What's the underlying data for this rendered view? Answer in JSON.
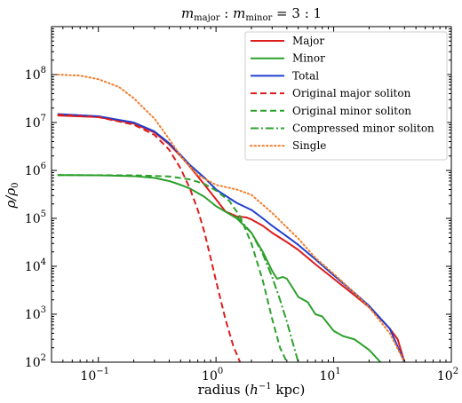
{
  "chart_data": {
    "type": "line",
    "title": "m_major : m_minor = 3 : 1",
    "title_parts": {
      "m1": "m",
      "s1": "major",
      "colon1": " : ",
      "m2": "m",
      "s2": "minor",
      "tail": " = 3 : 1"
    },
    "xlabel": "radius (h⁻¹ kpc)",
    "xlabel_parts": {
      "pre": "radius (",
      "h": "h",
      "sup": "−1",
      "post": " kpc)"
    },
    "ylabel": "ρ/ρ₀",
    "ylabel_parts": {
      "rho": "ρ/ρ",
      "sub": "0"
    },
    "xscale": "log",
    "yscale": "log",
    "xlim": [
      0.04,
      100
    ],
    "ylim": [
      100,
      1000000000
    ],
    "xticks": [
      {
        "value": 0.1,
        "base": "10",
        "exp": "−1"
      },
      {
        "value": 1,
        "base": "10",
        "exp": "0"
      },
      {
        "value": 10,
        "base": "10",
        "exp": "1"
      },
      {
        "value": 100,
        "base": "10",
        "exp": "2"
      }
    ],
    "yticks": [
      {
        "value": 100,
        "base": "10",
        "exp": "2"
      },
      {
        "value": 1000,
        "base": "10",
        "exp": "3"
      },
      {
        "value": 10000,
        "base": "10",
        "exp": "4"
      },
      {
        "value": 100000,
        "base": "10",
        "exp": "5"
      },
      {
        "value": 1000000,
        "base": "10",
        "exp": "6"
      },
      {
        "value": 10000000,
        "base": "10",
        "exp": "7"
      },
      {
        "value": 100000000,
        "base": "10",
        "exp": "8"
      }
    ],
    "legend_position": "top-right",
    "series": [
      {
        "name": "Major",
        "color": "#dd1c1c",
        "style": "solid",
        "x": [
          0.045,
          0.1,
          0.2,
          0.3,
          0.4,
          0.5,
          0.6,
          0.8,
          1.0,
          1.2,
          1.5,
          1.8,
          2.0,
          2.5,
          3.0,
          4.0,
          5.0,
          7.0,
          10.0,
          15.0,
          20.0,
          25.0,
          30.0,
          35.0,
          40.0
        ],
        "y": [
          14000000,
          13000000,
          9500000,
          6200000,
          3500000,
          2000000,
          1200000,
          500000,
          250000,
          140000,
          110000,
          105000,
          95000,
          70000,
          50000,
          32000,
          22000,
          11000,
          5500,
          2500,
          1400,
          800,
          500,
          300,
          100
        ]
      },
      {
        "name": "Minor",
        "color": "#2ca02c",
        "style": "solid",
        "x": [
          0.045,
          0.1,
          0.2,
          0.3,
          0.4,
          0.5,
          0.6,
          0.8,
          1.0,
          1.5,
          2.0,
          2.5,
          3.0,
          3.3,
          3.7,
          4.0,
          4.5,
          5.0,
          6.0,
          7.0,
          8.0,
          10.0,
          12.0,
          15.0,
          20.0,
          25.0
        ],
        "y": [
          800000,
          790000,
          760000,
          700000,
          600000,
          500000,
          420000,
          280000,
          180000,
          100000,
          50000,
          20000,
          8000,
          5500,
          6000,
          5500,
          3500,
          2300,
          1800,
          1000,
          900,
          450,
          350,
          300,
          180,
          100
        ]
      },
      {
        "name": "Total",
        "color": "#1f3fcf",
        "style": "solid",
        "x": [
          0.045,
          0.1,
          0.2,
          0.3,
          0.4,
          0.5,
          0.6,
          0.8,
          1.0,
          1.5,
          2.0,
          2.5,
          3.0,
          4.0,
          5.0,
          7.0,
          10.0,
          15.0,
          20.0,
          30.0,
          40.0
        ],
        "y": [
          15000000,
          13500000,
          10000000,
          6500000,
          3700000,
          2100000,
          1300000,
          700000,
          400000,
          210000,
          150000,
          100000,
          70000,
          42000,
          28000,
          14000,
          6500,
          2800,
          1500,
          500,
          100
        ]
      },
      {
        "name": "Original major soliton",
        "color": "#dd1c1c",
        "style": "dashed",
        "x": [
          0.045,
          0.1,
          0.2,
          0.3,
          0.4,
          0.5,
          0.6,
          0.7,
          0.8,
          1.0,
          1.2,
          1.4,
          1.6
        ],
        "y": [
          14500000,
          13000000,
          9000000,
          5500000,
          2700000,
          1100000,
          420000,
          150000,
          50000,
          5000,
          800,
          220,
          100
        ]
      },
      {
        "name": "Original minor soliton",
        "color": "#2ca02c",
        "style": "dashed",
        "x": [
          0.045,
          0.2,
          0.4,
          0.6,
          0.8,
          1.0,
          1.3,
          1.6,
          2.0,
          2.5,
          3.0,
          3.5,
          4.0
        ],
        "y": [
          800000,
          790000,
          750000,
          650000,
          520000,
          380000,
          230000,
          110000,
          30000,
          5000,
          800,
          200,
          100
        ]
      },
      {
        "name": "Compressed minor soliton",
        "color": "#2ca02c",
        "style": "dashdot",
        "x": [
          1.5,
          2.0,
          2.5,
          3.0,
          3.5,
          4.0,
          4.5,
          5.0
        ],
        "y": [
          110000,
          50000,
          18000,
          6000,
          2000,
          700,
          250,
          100
        ]
      },
      {
        "name": "Single",
        "color": "#f07f2f",
        "style": "dotted",
        "x": [
          0.045,
          0.07,
          0.1,
          0.15,
          0.2,
          0.3,
          0.4,
          0.5,
          0.7,
          1.0,
          1.5,
          2.0,
          3.0,
          5.0,
          7.0,
          10.0,
          15.0,
          20.0,
          30.0,
          40.0
        ],
        "y": [
          100000000,
          95000000,
          80000000,
          55000000,
          32000000,
          12000000,
          4500000,
          2000000,
          800000,
          500000,
          400000,
          310000,
          130000,
          38000,
          15000,
          7000,
          2800,
          1400,
          400,
          100
        ]
      }
    ]
  }
}
